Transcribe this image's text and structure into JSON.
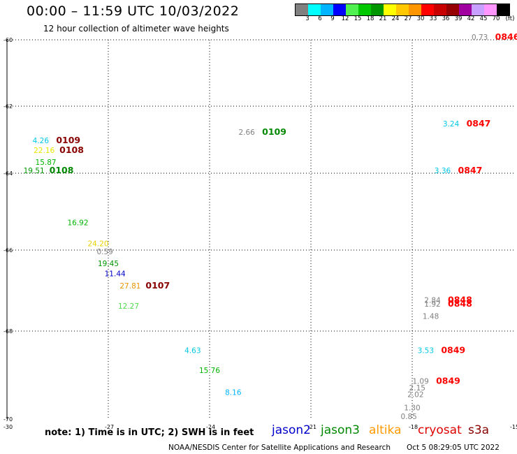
{
  "header": {
    "title": "00:00 – 11:59 UTC 10/03/2022",
    "subtitle": "12 hour collection of altimeter wave heights"
  },
  "legend": {
    "colors": [
      "#808080",
      "#00ffff",
      "#00b4ff",
      "#0000ff",
      "#50f050",
      "#00c800",
      "#009600",
      "#ffff00",
      "#ffc800",
      "#ff9600",
      "#ff0000",
      "#c80000",
      "#960000",
      "#a000a0",
      "#c8a0ff",
      "#ff96ff",
      "#000000"
    ],
    "labels": [
      "3",
      "6",
      "9",
      "12",
      "15",
      "18",
      "21",
      "24",
      "27",
      "30",
      "33",
      "36",
      "39",
      "42",
      "45",
      "70",
      "(ft)"
    ]
  },
  "footer": {
    "note": "note: 1) Time is in UTC; 2) SWH is in feet",
    "credit": "NOAA/NESDIS Center for Satellite Applications and Research",
    "timestamp": "Oct  5 08:29:05 UTC 2022",
    "satellites": [
      {
        "name": "jason2",
        "color": "#0000cc"
      },
      {
        "name": "jason3",
        "color": "#008800"
      },
      {
        "name": "altika",
        "color": "#ff9900"
      },
      {
        "name": "cryosat",
        "color": "#dd0000"
      },
      {
        "name": "s3a",
        "color": "#880000"
      }
    ]
  },
  "chart_data": {
    "type": "scatter",
    "title": "00:00 – 11:59 UTC 10/03/2022",
    "subtitle": "12 hour collection of altimeter wave heights",
    "xlim": [
      -30,
      -15
    ],
    "ylim": [
      -70,
      -60
    ],
    "x_ticks": [
      -30,
      -27,
      -24,
      -21,
      -18,
      -15
    ],
    "y_ticks": [
      -60,
      -62,
      -64,
      -66,
      -68,
      -70
    ],
    "grid": true,
    "points": [
      {
        "x": -16.0,
        "y": -60.0,
        "swh": "0.73",
        "color": "#808080",
        "time": "0846",
        "time_color": "#ff0000"
      },
      {
        "x": -16.85,
        "y": -62.6,
        "swh": "3.24",
        "color": "#00c8e6",
        "time": "0847",
        "time_color": "#ff0000"
      },
      {
        "x": -17.1,
        "y": -64.0,
        "swh": "3.36",
        "color": "#00c8e6",
        "time": "0847",
        "time_color": "#ff0000"
      },
      {
        "x": -17.4,
        "y": -67.3,
        "swh": "2.84",
        "color": "#808080",
        "time": "0848",
        "time_color": "#ff0000"
      },
      {
        "x": -17.4,
        "y": -67.4,
        "swh": "1.92",
        "color": "#808080",
        "time": "0848",
        "time_color": "#ff0000"
      },
      {
        "x": -17.45,
        "y": -67.7,
        "swh": "1.48",
        "color": "#808080",
        "time": "",
        "time_color": "#ff0000"
      },
      {
        "x": -17.6,
        "y": -68.5,
        "swh": "3.53",
        "color": "#00c8e6",
        "time": "0849",
        "time_color": "#ff0000"
      },
      {
        "x": -17.75,
        "y": -69.2,
        "swh": "1.09",
        "color": "#808080",
        "time": "0849",
        "time_color": "#ff0000"
      },
      {
        "x": -17.85,
        "y": -69.35,
        "swh": "2.15",
        "color": "#808080",
        "time": "",
        "time_color": "#ff0000"
      },
      {
        "x": -17.9,
        "y": -69.5,
        "swh": "2.02",
        "color": "#808080",
        "time": "",
        "time_color": "#ff0000"
      },
      {
        "x": -18.0,
        "y": -69.8,
        "swh": "1.30",
        "color": "#808080",
        "time": "",
        "time_color": "#ff0000"
      },
      {
        "x": -18.1,
        "y": -70.0,
        "swh": "0.85",
        "color": "#808080",
        "time": "",
        "time_color": "#ff0000"
      },
      {
        "x": -22.9,
        "y": -62.85,
        "swh": "2.66",
        "color": "#808080",
        "time": "0109",
        "time_color": "#008800"
      },
      {
        "x": -29.0,
        "y": -63.1,
        "swh": "4.26",
        "color": "#00c8e6",
        "time": "0109",
        "time_color": "#880000"
      },
      {
        "x": -28.9,
        "y": -63.4,
        "swh": "22.16",
        "color": "#e6e600",
        "time": "0108",
        "time_color": "#880000"
      },
      {
        "x": -28.85,
        "y": -63.75,
        "swh": "15.87",
        "color": "#00b400",
        "time": "",
        "time_color": "#880000"
      },
      {
        "x": -29.2,
        "y": -64.0,
        "swh": "19.51",
        "color": "#009600",
        "time": "0108",
        "time_color": "#008800"
      },
      {
        "x": -27.9,
        "y": -65.35,
        "swh": "16.92",
        "color": "#00b400",
        "time": "",
        "time_color": "#008800"
      },
      {
        "x": -27.3,
        "y": -65.9,
        "swh": "24.20",
        "color": "#e6d200",
        "time": "",
        "time_color": "#008800"
      },
      {
        "x": -27.1,
        "y": -66.1,
        "swh": "0.59",
        "color": "#808080",
        "time": "",
        "time_color": "#008800"
      },
      {
        "x": -27.0,
        "y": -66.4,
        "swh": "19.45",
        "color": "#009600",
        "time": "",
        "time_color": "#008800"
      },
      {
        "x": -26.8,
        "y": -66.65,
        "swh": "11.44",
        "color": "#0000c8",
        "time": "",
        "time_color": "#008800"
      },
      {
        "x": -26.35,
        "y": -66.95,
        "swh": "27.81",
        "color": "#e69600",
        "time": "0107",
        "time_color": "#880000"
      },
      {
        "x": -26.4,
        "y": -67.45,
        "swh": "12.27",
        "color": "#50dc50",
        "time": "",
        "time_color": "#008800"
      },
      {
        "x": -24.5,
        "y": -68.5,
        "swh": "4.63",
        "color": "#00c8e6",
        "time": "",
        "time_color": "#008800"
      },
      {
        "x": -24.0,
        "y": -68.95,
        "swh": "15.76",
        "color": "#00b400",
        "time": "",
        "time_color": "#008800"
      },
      {
        "x": -23.3,
        "y": -69.45,
        "swh": "8.16",
        "color": "#00b4ff",
        "time": "",
        "time_color": "#008800"
      }
    ]
  }
}
